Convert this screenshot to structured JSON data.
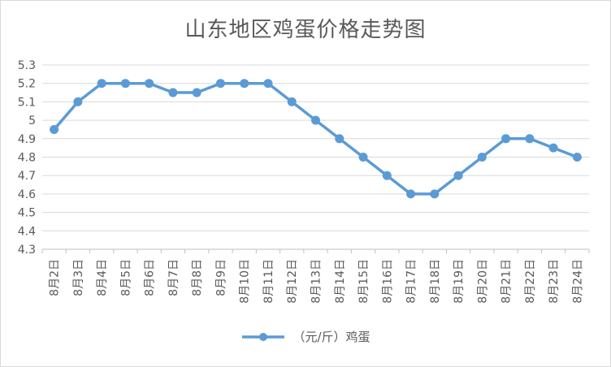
{
  "chart_data": {
    "type": "line",
    "title": "山东地区鸡蛋价格走势图",
    "categories": [
      "8月2日",
      "8月3日",
      "8月4日",
      "8月5日",
      "8月6日",
      "8月7日",
      "8月8日",
      "8月9日",
      "8月10日",
      "8月11日",
      "8月12日",
      "8月13日",
      "8月14日",
      "8月15日",
      "8月16日",
      "8月17日",
      "8月18日",
      "8月19日",
      "8月20日",
      "8月21日",
      "8月22日",
      "8月23日",
      "8月24日"
    ],
    "series": [
      {
        "name": "（元/斤）鸡蛋",
        "color": "#5b9bd5",
        "values": [
          4.95,
          5.1,
          5.2,
          5.2,
          5.2,
          5.15,
          5.15,
          5.2,
          5.2,
          5.2,
          5.1,
          5.0,
          4.9,
          4.8,
          4.7,
          4.6,
          4.6,
          4.7,
          4.8,
          4.9,
          4.9,
          4.85,
          4.8
        ]
      }
    ],
    "ylim": [
      4.3,
      5.3
    ],
    "yticks": [
      "4.3",
      "4.4",
      "4.5",
      "4.6",
      "4.7",
      "4.8",
      "4.9",
      "5",
      "5.1",
      "5.2",
      "5.3"
    ],
    "grid": true,
    "legend_position": "bottom"
  }
}
